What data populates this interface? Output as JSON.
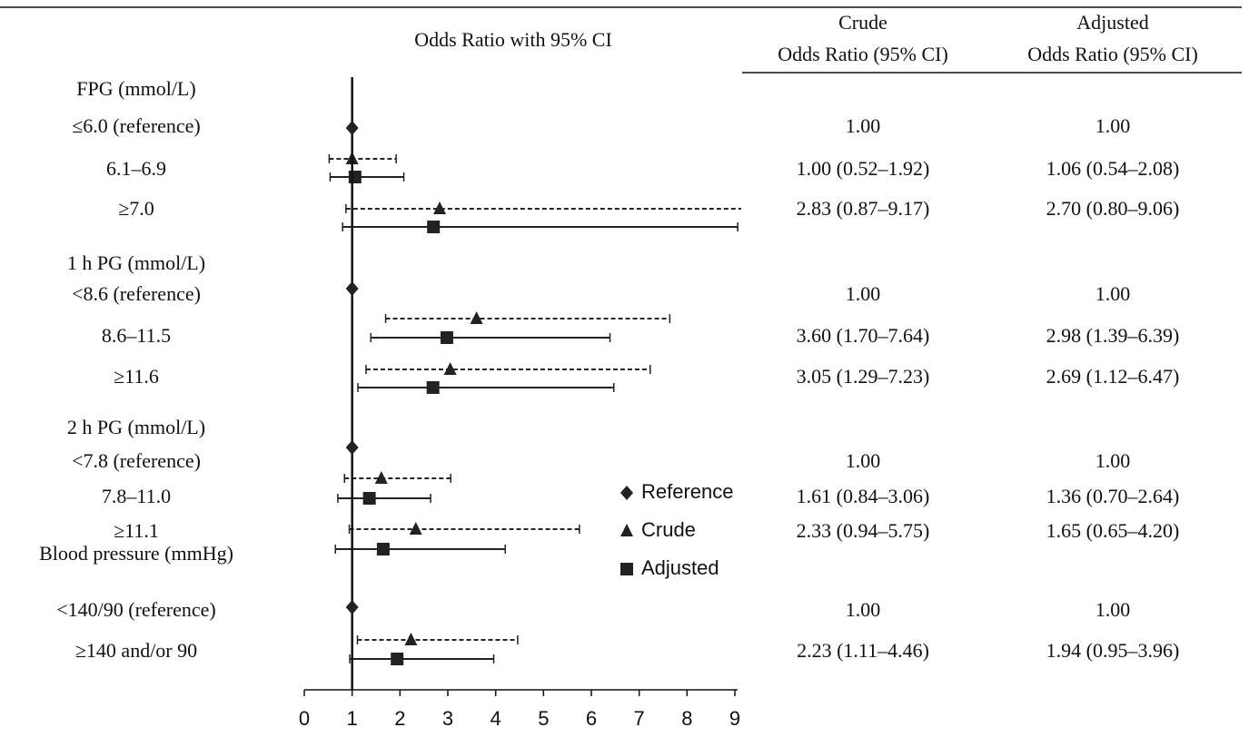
{
  "chart_data": {
    "type": "forest",
    "title": "Odds Ratio with 95% CI",
    "crude_header": [
      "Crude",
      "Odds Ratio (95% CI)"
    ],
    "adjusted_header": [
      "Adjusted",
      "Odds Ratio (95% CI)"
    ],
    "xlim": [
      0,
      9
    ],
    "xticks": [
      0,
      1,
      2,
      3,
      4,
      5,
      6,
      7,
      8,
      9
    ],
    "reference_line": 1,
    "series": [
      {
        "name": "Reference",
        "color": "#222222",
        "marker": "diamond"
      },
      {
        "name": "Crude",
        "color": "#222222",
        "marker": "triangle",
        "dashed": true
      },
      {
        "name": "Adjusted",
        "color": "#222222",
        "marker": "square",
        "dashed": false
      }
    ],
    "groups": [
      {
        "name": "FPG (mmol/L)",
        "rows": [
          {
            "label": "≤6.0 (reference)",
            "crude": {
              "value": 1.0,
              "label": "1.00"
            },
            "adjusted": {
              "value": 1.0,
              "label": "1.00"
            }
          },
          {
            "label": "6.1–6.9",
            "crude": {
              "value": 1.0,
              "low": 0.52,
              "high": 1.92,
              "label": "1.00 (0.52–1.92)"
            },
            "adjusted": {
              "value": 1.06,
              "low": 0.54,
              "high": 2.08,
              "label": "1.06 (0.54–2.08)"
            }
          },
          {
            "label": "≥7.0",
            "crude": {
              "value": 2.83,
              "low": 0.87,
              "high": 9.17,
              "label": "2.83 (0.87–9.17)"
            },
            "adjusted": {
              "value": 2.7,
              "low": 0.8,
              "high": 9.06,
              "label": "2.70 (0.80–9.06)"
            }
          }
        ]
      },
      {
        "name": "1 h PG (mmol/L)",
        "rows": [
          {
            "label": "<8.6 (reference)",
            "crude": {
              "value": 1.0,
              "label": "1.00"
            },
            "adjusted": {
              "value": 1.0,
              "label": "1.00"
            }
          },
          {
            "label": "8.6–11.5",
            "crude": {
              "value": 3.6,
              "low": 1.7,
              "high": 7.64,
              "label": "3.60 (1.70–7.64)"
            },
            "adjusted": {
              "value": 2.98,
              "low": 1.39,
              "high": 6.39,
              "label": "2.98 (1.39–6.39)"
            }
          },
          {
            "label": "≥11.6",
            "crude": {
              "value": 3.05,
              "low": 1.29,
              "high": 7.23,
              "label": "3.05 (1.29–7.23)"
            },
            "adjusted": {
              "value": 2.69,
              "low": 1.12,
              "high": 6.47,
              "label": "2.69 (1.12–6.47)"
            }
          }
        ]
      },
      {
        "name": "2 h PG (mmol/L)",
        "rows": [
          {
            "label": "<7.8 (reference)",
            "crude": {
              "value": 1.0,
              "label": "1.00"
            },
            "adjusted": {
              "value": 1.0,
              "label": "1.00"
            }
          },
          {
            "label": "7.8–11.0",
            "crude": {
              "value": 1.61,
              "low": 0.84,
              "high": 3.06,
              "label": "1.61 (0.84–3.06)"
            },
            "adjusted": {
              "value": 1.36,
              "low": 0.7,
              "high": 2.64,
              "label": "1.36 (0.70–2.64)"
            }
          },
          {
            "label": "≥11.1",
            "crude": {
              "value": 2.33,
              "low": 0.94,
              "high": 5.75,
              "label": "2.33 (0.94–5.75)"
            },
            "adjusted": {
              "value": 1.65,
              "low": 0.65,
              "high": 4.2,
              "label": "1.65 (0.65–4.20)"
            }
          }
        ]
      },
      {
        "name": "Blood pressure (mmHg)",
        "rows": [
          {
            "label": "<140/90 (reference)",
            "crude": {
              "value": 1.0,
              "label": "1.00"
            },
            "adjusted": {
              "value": 1.0,
              "label": "1.00"
            }
          },
          {
            "label": "≥140 and/or 90",
            "crude": {
              "value": 2.23,
              "low": 1.11,
              "high": 4.46,
              "label": "2.23 (1.11–4.46)"
            },
            "adjusted": {
              "value": 1.94,
              "low": 0.95,
              "high": 3.96,
              "label": "1.94 (0.95–3.96)"
            }
          }
        ]
      }
    ]
  }
}
